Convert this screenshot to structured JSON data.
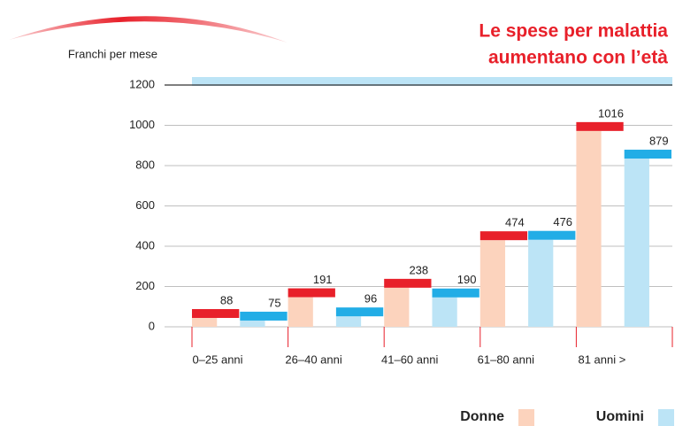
{
  "chart_data": {
    "type": "bar",
    "title": [
      "Le spese per malattia",
      "aumentano con l’età"
    ],
    "y_label": "Franchi per mese",
    "categories": [
      "0–25 anni",
      "26–40 anni",
      "41–60 anni",
      "61–80 anni",
      "81 anni >"
    ],
    "series": [
      {
        "name": "Donne",
        "color": "#e8202a",
        "light_color": "#fcd3bd",
        "values": [
          88,
          191,
          238,
          474,
          1016
        ]
      },
      {
        "name": "Uomini",
        "color": "#22ade6",
        "light_color": "#bce4f6",
        "values": [
          75,
          96,
          190,
          476,
          879
        ]
      }
    ],
    "ylim": [
      0,
      1200
    ],
    "yticks": [
      0,
      200,
      400,
      600,
      800,
      1000,
      1200
    ],
    "grid": true
  }
}
